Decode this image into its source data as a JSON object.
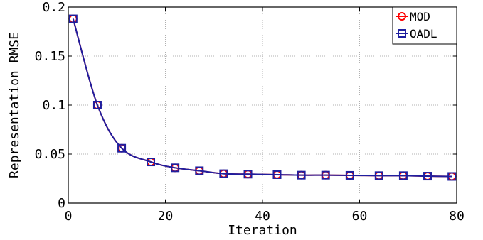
{
  "chart_data": {
    "type": "line",
    "xlabel": "Iteration",
    "ylabel": "Representation RMSE",
    "xlim": [
      0,
      80
    ],
    "ylim": [
      0,
      0.2
    ],
    "x_ticks": [
      0,
      20,
      40,
      60,
      80
    ],
    "y_ticks": [
      0,
      0.05,
      0.1,
      0.15,
      0.2
    ],
    "x_tick_labels": [
      "0",
      "20",
      "40",
      "60",
      "80"
    ],
    "y_tick_labels": [
      "0",
      "0.05",
      "0.1",
      "0.15",
      "0.2"
    ],
    "grid": true,
    "legend_position": "top-right",
    "x": [
      1,
      6,
      11,
      17,
      22,
      27,
      32,
      37,
      43,
      48,
      53,
      58,
      64,
      69,
      74,
      79
    ],
    "series": [
      {
        "name": "MOD",
        "color": "#ff0000",
        "marker": "circle",
        "values": [
          0.188,
          0.1,
          0.056,
          0.042,
          0.036,
          0.033,
          0.03,
          0.0295,
          0.029,
          0.0285,
          0.0285,
          0.0283,
          0.028,
          0.028,
          0.0275,
          0.0272
        ]
      },
      {
        "name": "OADL",
        "color": "#1f1f9f",
        "marker": "square",
        "values": [
          0.188,
          0.1,
          0.056,
          0.042,
          0.036,
          0.033,
          0.03,
          0.0295,
          0.029,
          0.0285,
          0.0285,
          0.0283,
          0.028,
          0.028,
          0.0275,
          0.0272
        ]
      }
    ]
  }
}
